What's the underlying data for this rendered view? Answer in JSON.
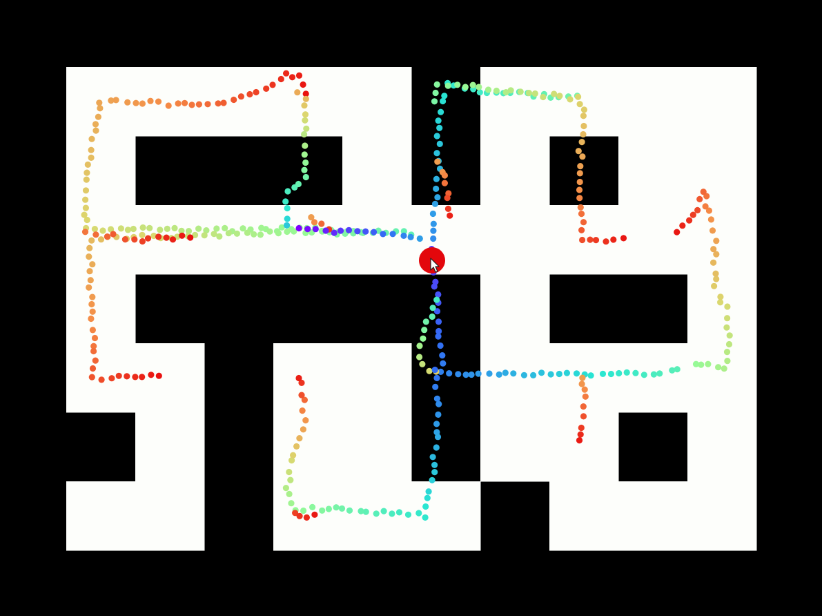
{
  "colors": {
    "background": "#000000",
    "maze_floor": "#fdfefb",
    "agent": "#e3070c",
    "cursor_fill": "#ffffff",
    "cursor_stroke": "#222222"
  },
  "maze": {
    "rows": 7,
    "cols": 10,
    "grid": [
      "1111101111",
      "1000101011",
      "1111111111",
      "1000001001",
      "1101101111",
      "0101101101",
      "1101110111"
    ]
  },
  "trail": {
    "colormap": "rainbow",
    "paths": [
      {
        "name": "upper-left-loop",
        "t0": 0.55,
        "t1": 1.0,
        "points": [
          [
            4.3,
            2.4
          ],
          [
            3.6,
            2.35
          ],
          [
            2.8,
            2.35
          ],
          [
            1.8,
            2.35
          ],
          [
            1.0,
            2.35
          ],
          [
            0.3,
            2.35
          ],
          [
            0.25,
            1.9
          ],
          [
            0.35,
            1.3
          ],
          [
            0.45,
            0.8
          ],
          [
            0.5,
            0.5
          ],
          [
            1.0,
            0.5
          ],
          [
            1.6,
            0.55
          ],
          [
            2.3,
            0.55
          ],
          [
            2.9,
            0.3
          ],
          [
            3.2,
            0.1
          ],
          [
            3.4,
            0.15
          ],
          [
            3.55,
            0.5
          ]
        ]
      },
      {
        "name": "upper-left-inner",
        "t0": 0.35,
        "t1": 0.85,
        "points": [
          [
            3.2,
            2.3
          ],
          [
            3.2,
            1.8
          ],
          [
            3.45,
            1.6
          ],
          [
            3.45,
            1.0
          ],
          [
            3.45,
            0.45
          ],
          [
            3.3,
            0.3
          ]
        ]
      },
      {
        "name": "left-corridor",
        "t0": 0.5,
        "t1": 1.0,
        "points": [
          [
            5.0,
            2.4
          ],
          [
            4.3,
            2.4
          ],
          [
            3.2,
            2.4
          ],
          [
            2.0,
            2.45
          ],
          [
            1.0,
            2.45
          ],
          [
            0.35,
            2.5
          ],
          [
            0.35,
            3.2
          ],
          [
            0.4,
            3.9
          ],
          [
            0.4,
            4.5
          ],
          [
            1.0,
            4.5
          ],
          [
            1.45,
            4.45
          ]
        ]
      },
      {
        "name": "central-stub",
        "t0": 0.85,
        "t1": 1.0,
        "points": [
          [
            3.55,
            2.2
          ],
          [
            3.7,
            2.3
          ],
          [
            3.9,
            2.45
          ]
        ]
      },
      {
        "name": "left-red-stubs",
        "t0": 0.9,
        "t1": 1.0,
        "points": [
          [
            0.3,
            2.4
          ],
          [
            0.7,
            2.45
          ],
          [
            1.1,
            2.5
          ],
          [
            1.9,
            2.45
          ]
        ]
      },
      {
        "name": "center-crossing",
        "t0": 0.0,
        "t1": 0.3,
        "points": [
          [
            3.4,
            2.35
          ],
          [
            4.0,
            2.38
          ],
          [
            4.6,
            2.4
          ],
          [
            5.0,
            2.45
          ],
          [
            5.25,
            2.55
          ]
        ]
      },
      {
        "name": "center-up",
        "t0": 0.25,
        "t1": 0.55,
        "points": [
          [
            5.3,
            2.5
          ],
          [
            5.35,
            2.0
          ],
          [
            5.4,
            1.5
          ],
          [
            5.4,
            1.0
          ],
          [
            5.45,
            0.4
          ],
          [
            5.5,
            0.25
          ],
          [
            6.0,
            0.35
          ],
          [
            6.8,
            0.4
          ],
          [
            7.5,
            0.45
          ]
        ]
      },
      {
        "name": "center-up-red",
        "t0": 0.85,
        "t1": 1.0,
        "points": [
          [
            5.4,
            1.4
          ],
          [
            5.55,
            1.8
          ],
          [
            5.55,
            2.3
          ]
        ]
      },
      {
        "name": "right-upper-branch",
        "t0": 0.55,
        "t1": 1.0,
        "points": [
          [
            5.35,
            0.5
          ],
          [
            5.4,
            0.25
          ],
          [
            6.0,
            0.3
          ],
          [
            6.8,
            0.4
          ],
          [
            7.4,
            0.45
          ],
          [
            7.5,
            0.6
          ],
          [
            7.45,
            1.2
          ],
          [
            7.45,
            1.8
          ],
          [
            7.5,
            2.5
          ],
          [
            7.8,
            2.5
          ],
          [
            8.2,
            2.5
          ]
        ]
      },
      {
        "name": "right-far-branch",
        "t0": 0.6,
        "t1": 1.0,
        "points": [
          [
            9.1,
            4.3
          ],
          [
            9.55,
            4.35
          ],
          [
            9.6,
            4.0
          ],
          [
            9.55,
            3.5
          ],
          [
            9.4,
            3.2
          ],
          [
            9.4,
            2.5
          ],
          [
            9.3,
            2.1
          ],
          [
            9.25,
            1.8
          ],
          [
            9.15,
            2.05
          ],
          [
            8.8,
            2.5
          ]
        ]
      },
      {
        "name": "center-down",
        "t0": 0.1,
        "t1": 0.5,
        "points": [
          [
            5.3,
            2.65
          ],
          [
            5.35,
            3.2
          ],
          [
            5.4,
            3.8
          ],
          [
            5.45,
            4.4
          ],
          [
            6.0,
            4.45
          ],
          [
            7.0,
            4.45
          ],
          [
            8.0,
            4.45
          ],
          [
            9.0,
            4.4
          ]
        ]
      },
      {
        "name": "center-down-warm",
        "t0": 0.45,
        "t1": 0.8,
        "points": [
          [
            5.35,
            3.4
          ],
          [
            5.2,
            3.8
          ],
          [
            5.1,
            4.2
          ],
          [
            5.25,
            4.4
          ],
          [
            5.5,
            4.45
          ]
        ]
      },
      {
        "name": "lower-branch",
        "t0": 0.2,
        "t1": 0.6,
        "points": [
          [
            5.35,
            4.4
          ],
          [
            5.4,
            4.9
          ],
          [
            5.35,
            5.5
          ],
          [
            5.3,
            6.0
          ],
          [
            5.2,
            6.5
          ],
          [
            4.6,
            6.45
          ],
          [
            3.9,
            6.4
          ],
          [
            3.35,
            6.4
          ]
        ]
      },
      {
        "name": "lower-left-stem",
        "t0": 0.6,
        "t1": 1.0,
        "points": [
          [
            3.3,
            6.4
          ],
          [
            3.2,
            6.1
          ],
          [
            3.3,
            5.6
          ],
          [
            3.45,
            5.1
          ],
          [
            3.4,
            4.6
          ],
          [
            3.4,
            4.4
          ]
        ]
      },
      {
        "name": "lower-left-tip",
        "t0": 0.95,
        "t1": 1.0,
        "points": [
          [
            3.3,
            6.45
          ],
          [
            3.5,
            6.5
          ],
          [
            3.75,
            6.5
          ]
        ]
      },
      {
        "name": "lower-right-stub",
        "t0": 0.85,
        "t1": 1.0,
        "points": [
          [
            7.5,
            4.5
          ],
          [
            7.5,
            4.8
          ],
          [
            7.45,
            5.2
          ],
          [
            7.45,
            5.5
          ]
        ]
      }
    ]
  },
  "agent": {
    "col": 5.3,
    "row": 2.8,
    "radius_cells": 0.19
  },
  "cursor": {
    "icon": "arrow-cursor-icon",
    "col": 5.3,
    "row": 2.8
  }
}
